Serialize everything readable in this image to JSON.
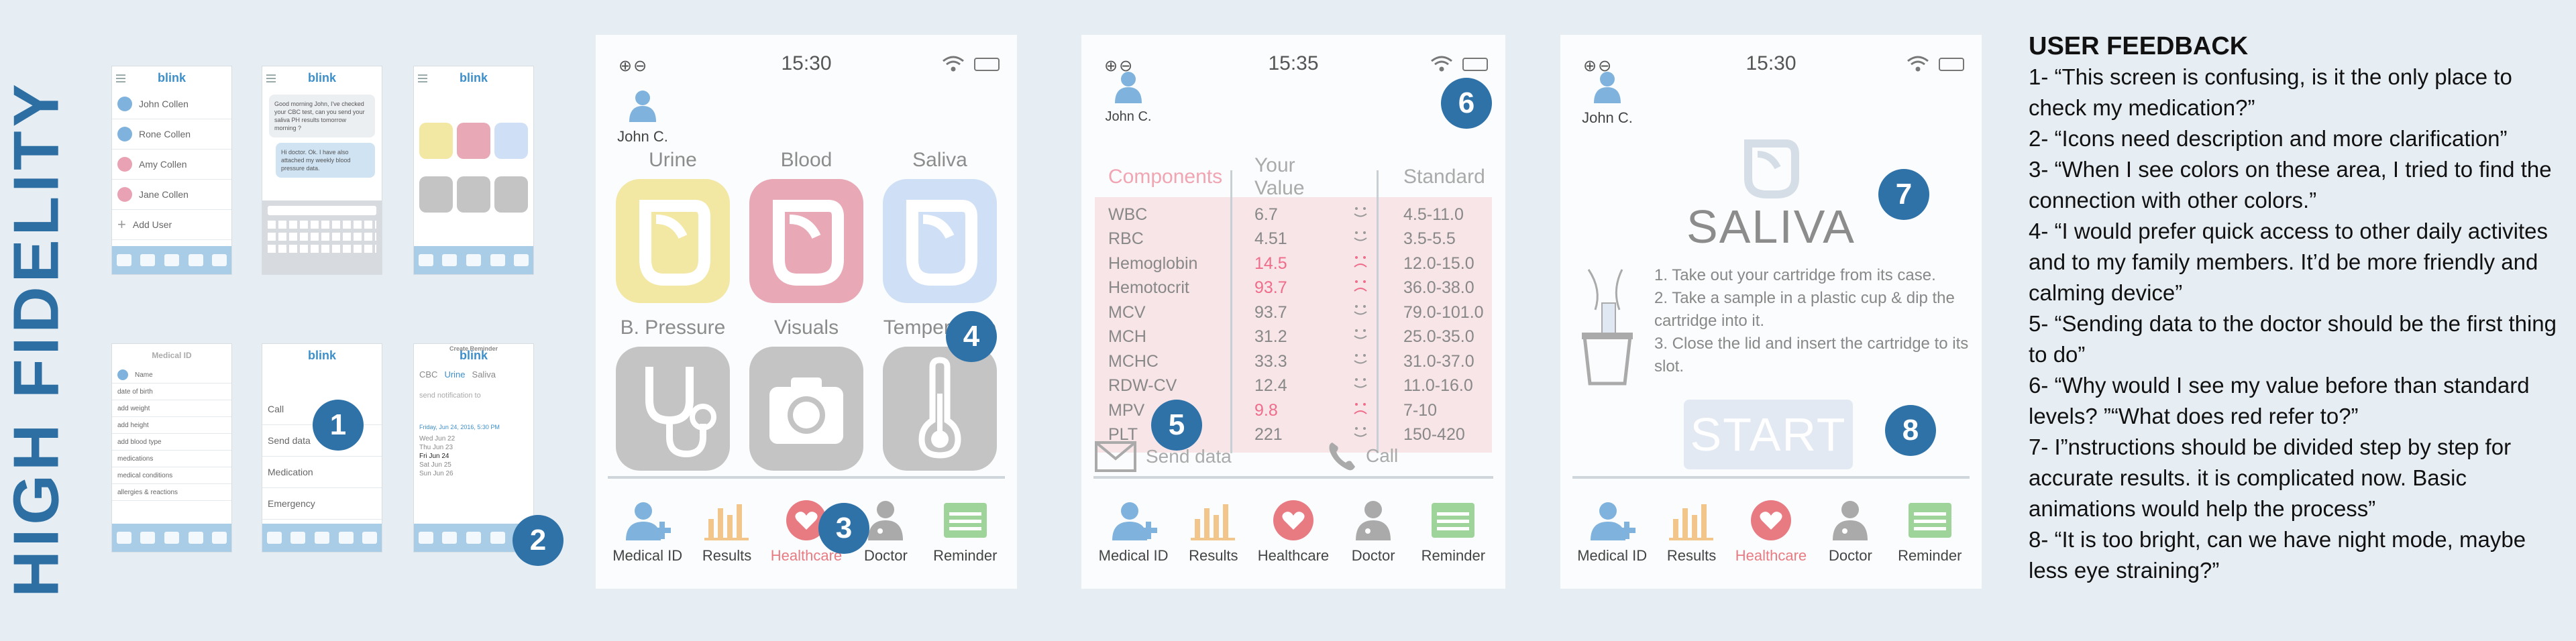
{
  "heading": "HIGH FIDELITY",
  "thumbnails": {
    "brand": "blink",
    "users": [
      "John Collen",
      "Rone Collen",
      "Amy Collen",
      "Jane Collen"
    ],
    "add_user": "Add User",
    "chat_msg_1": "Good morning John, I've checked your CBC test, can you send your saliva PH results tomorrow morning ?",
    "chat_msg_2": "Hi doctor. Ok. I have also attached my weekly blood pressure data.",
    "medical_id_title": "Medical ID",
    "medical_id_fields": [
      "Name",
      "date of birth",
      "add weight",
      "add height",
      "add blood type",
      "medications",
      "medical conditions",
      "allergies & reactions"
    ],
    "menu_items": [
      "Call",
      "Send data",
      "Medication",
      "Emergency"
    ],
    "reminder_title": "Create Reminder",
    "reminder_tabs": [
      "CBC",
      "Urine",
      "Saliva"
    ],
    "reminder_notify": "send notification to",
    "reminder_date": "Friday, Jun 24, 2016, 5:30 PM",
    "picker_rows": [
      "Wed Jun 22",
      "Thu Jun 23",
      "Fri Jun 24",
      "Sat Jun 25",
      "Sun Jun 26"
    ]
  },
  "screen1": {
    "time": "15:30",
    "zoom": "⊕⊖",
    "user": "John C.",
    "categories": [
      "Urine",
      "Blood",
      "Saliva",
      "B. Pressure",
      "Visuals",
      "Temperature"
    ],
    "tile_colors": [
      "#f2e7a3",
      "#e9a8b6",
      "#cfe0f6",
      "#c4c4c4",
      "#c4c4c4",
      "#c4c4c4"
    ]
  },
  "screen2": {
    "time": "15:35",
    "zoom": "⊕⊖",
    "user": "John C.",
    "headers": [
      "Components",
      "Your Value",
      "Standard"
    ],
    "rows": [
      {
        "name": "WBC",
        "value": "6.7",
        "std": "4.5-11.0"
      },
      {
        "name": "RBC",
        "value": "4.51",
        "std": "3.5-5.5"
      },
      {
        "name": "Hemoglobin",
        "value": "14.5",
        "std": "12.0-15.0"
      },
      {
        "name": "Hemotocrit",
        "value": "93.7",
        "std": "36.0-38.0"
      },
      {
        "name": "MCV",
        "value": "93.7",
        "std": "79.0-101.0"
      },
      {
        "name": "MCH",
        "value": "31.2",
        "std": "25.0-35.0"
      },
      {
        "name": "MCHC",
        "value": "33.3",
        "std": "31.0-37.0"
      },
      {
        "name": "RDW-CV",
        "value": "12.4",
        "std": "11.0-16.0"
      },
      {
        "name": "MPV",
        "value": "9.8",
        "std": "7-10"
      },
      {
        "name": "PLT",
        "value": "221",
        "std": "150-420"
      }
    ],
    "send_data": "Send data",
    "call": "Call"
  },
  "screen3": {
    "time": "15:30",
    "zoom": "⊕⊖",
    "user": "John C.",
    "title": "SALIVA",
    "steps": [
      "1. Take out your cartridge from its case.",
      "2. Take a sample in a plastic cup & dip the cartridge into it.",
      "3. Close the lid and insert the cartridge to its slot."
    ],
    "start": "START"
  },
  "tabbar": [
    "Medical ID",
    "Results",
    "Healthcare",
    "Doctor",
    "Reminder"
  ],
  "badges": [
    "1",
    "2",
    "3",
    "4",
    "5",
    "6",
    "7",
    "8"
  ],
  "feedback": {
    "title": "USER FEEDBACK",
    "items": [
      "1- “This screen is confusing, is it the only place to check my medication?”",
      "2- “Icons need description and more clarification”",
      "3- “When I see colors on these area, I tried to find the connection with other colors.”",
      "4- “I would prefer quick access to other daily activites and to my family members. It’d be more friendly and calming device”",
      "5- “Sending data to the doctor should be the first thing to do”",
      "6- “Why would I see my value before than standard levels? ”“What does red refer to?”",
      "7- I”nstructions should be divided step by step for accurate results. it is complicated now. Basic animations would help the process”",
      "8- “It is too bright, can we have night mode, maybe less eye straining?”"
    ]
  },
  "colors": {
    "accent": "#2f72a8",
    "healthcare": "#e87b82",
    "table_bg": "#f7e5e8",
    "high_value": "#ef6d8a"
  }
}
